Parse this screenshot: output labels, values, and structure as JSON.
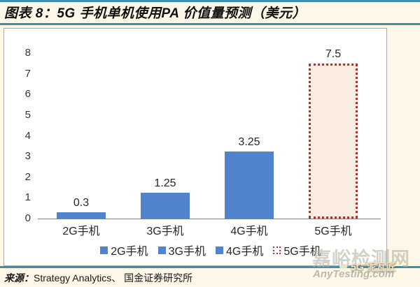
{
  "header": {
    "title": "图表 8：5G 手机单机使用PA 价值量预测（美元）"
  },
  "chart_data": {
    "type": "bar",
    "title": "5G 手机单机使用PA 价值量预测（美元）",
    "categories": [
      "2G手机",
      "3G手机",
      "4G手机",
      "5G手机"
    ],
    "values": [
      0.3,
      1.25,
      3.25,
      7.5
    ],
    "data_labels": [
      "0.3",
      "1.25",
      "3.25",
      "7.5"
    ],
    "xlabel": "",
    "ylabel": "",
    "ylim": [
      0,
      8
    ],
    "yticks": [
      0,
      1,
      2,
      3,
      4,
      5,
      6,
      7,
      8
    ],
    "grid": false,
    "legend_position": "bottom",
    "bar_styles": [
      "solid",
      "solid",
      "solid",
      "dotted-outline"
    ],
    "colors": {
      "bar_blue": "#5284CD",
      "highlight_fill": "#FCEDE3",
      "highlight_border": "#9E3B33",
      "accent_teal": "#3E8FA8"
    }
  },
  "legend": {
    "items": [
      {
        "label": "2G手机",
        "swatch": "solid"
      },
      {
        "label": "3G手机",
        "swatch": "solid"
      },
      {
        "label": "4G手机",
        "swatch": "solid"
      },
      {
        "label": "5G手机",
        "swatch": "dotted"
      }
    ]
  },
  "footer": {
    "source_label": "来源：",
    "source_text": "Strategy Analytics、 国金证券研究所"
  },
  "watermarks": {
    "site_name": "嘉峪检测网",
    "site_url": "AnyTesting.com",
    "badge_text": "5G 泥瓦匠"
  }
}
